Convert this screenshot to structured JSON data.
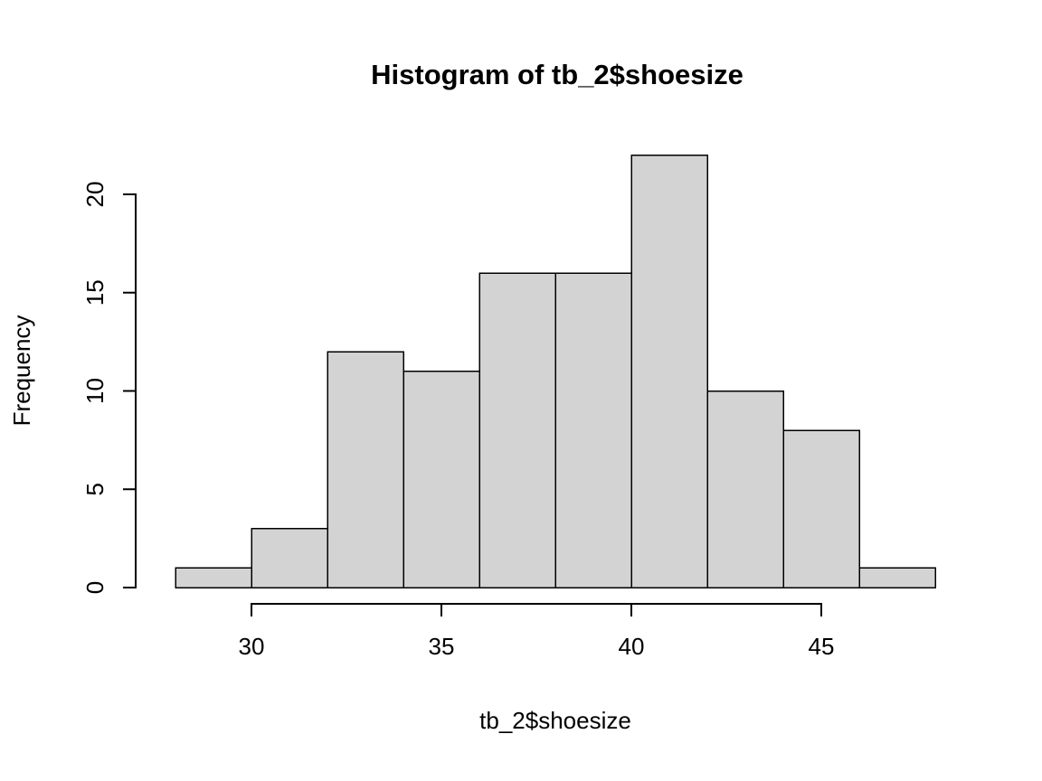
{
  "chart_data": {
    "type": "bar",
    "subtype": "histogram",
    "title": "Histogram of tb_2$shoesize",
    "xlabel": "tb_2$shoesize",
    "ylabel": "Frequency",
    "bin_edges": [
      28,
      30,
      32,
      34,
      36,
      38,
      40,
      42,
      44,
      46,
      48
    ],
    "values": [
      1,
      3,
      12,
      11,
      16,
      16,
      22,
      10,
      8,
      1
    ],
    "x_ticks": [
      30,
      35,
      40,
      45
    ],
    "y_ticks": [
      0,
      5,
      10,
      15,
      20
    ],
    "xlim": [
      28,
      48
    ],
    "ylim": [
      0,
      22
    ],
    "bar_fill": "#d3d3d3",
    "bar_stroke": "#000000",
    "grid": false,
    "legend": false
  }
}
